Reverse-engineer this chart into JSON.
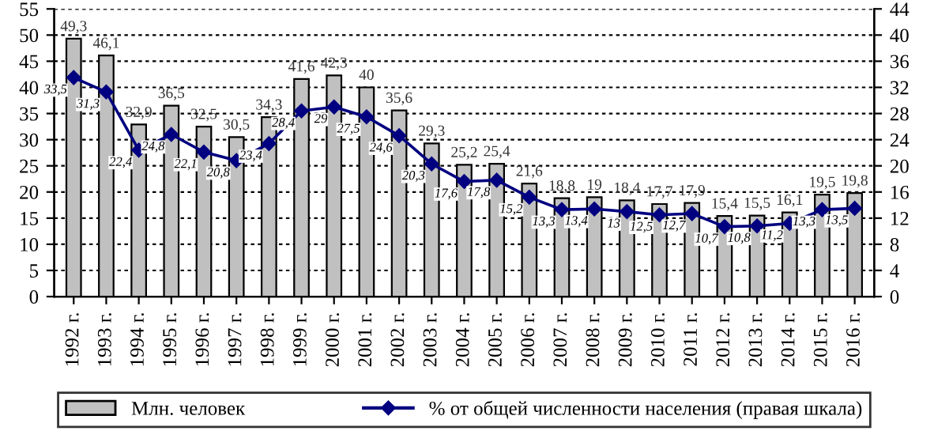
{
  "chart_data": {
    "type": "bar",
    "categories": [
      "1992 г.",
      "1993 г.",
      "1994 г.",
      "1995 г.",
      "1996 г.",
      "1997 г.",
      "1998 г.",
      "1999 г.",
      "2000 г.",
      "2001 г.",
      "2002 г.",
      "2003 г.",
      "2004 г.",
      "2005 г.",
      "2006 г.",
      "2007 г.",
      "2008 г.",
      "2009 г.",
      "2010 г.",
      "2011 г.",
      "2012 г.",
      "2013 г.",
      "2014 г.",
      "2015 г.",
      "2016 г."
    ],
    "series": [
      {
        "name": "Млн. человек",
        "color": "#c0c0c0",
        "values": [
          49.3,
          46.1,
          32.9,
          36.5,
          32.5,
          30.5,
          34.3,
          41.6,
          42.3,
          40,
          35.6,
          29.3,
          25.2,
          25.4,
          21.6,
          18.8,
          19,
          18.4,
          17.7,
          17.9,
          15.4,
          15.5,
          16.1,
          19.5,
          19.8
        ],
        "value_labels": [
          "49,3",
          "46,1",
          "32,9",
          "36,5",
          "32,5",
          "30,5",
          "34,3",
          "41,6",
          "42,3",
          "40",
          "35,6",
          "29,3",
          "25,2",
          "25,4",
          "21,6",
          "18,8",
          "19",
          "18,4",
          "17,7",
          "17,9",
          "15,4",
          "15,5",
          "16,1",
          "19,5",
          "19,8"
        ]
      },
      {
        "name": "% от общей численности населения (правая шкала)",
        "type": "line",
        "axis": "y2",
        "color": "#000080",
        "marker": "diamond",
        "values": [
          33.5,
          31.3,
          22.4,
          24.8,
          22.1,
          20.8,
          23.4,
          28.4,
          29,
          27.5,
          24.6,
          20.3,
          17.6,
          17.8,
          15.2,
          13.3,
          13.4,
          13,
          12.5,
          12.7,
          10.7,
          10.8,
          11.2,
          13.3,
          13.5
        ],
        "value_labels": [
          "33,5",
          "31,3",
          "22,4",
          "24,8",
          "22,1",
          "20,8",
          "23,4",
          "28,4",
          "29",
          "27,5",
          "24,6",
          "20,3",
          "17,6",
          "17,8",
          "15,2",
          "13,3",
          "13,4",
          "13",
          "12,5",
          "12,7",
          "10,7",
          "10,8",
          "11,2",
          "13,3",
          "13,5"
        ]
      }
    ],
    "ylim": [
      0,
      55
    ],
    "yticks": [
      0,
      5,
      10,
      15,
      20,
      25,
      30,
      35,
      40,
      45,
      50,
      55
    ],
    "y2lim": [
      0,
      44
    ],
    "y2ticks": [
      0,
      4,
      8,
      12,
      16,
      20,
      24,
      28,
      32,
      36,
      40,
      44
    ],
    "grid": "y",
    "legend": "bottom"
  }
}
